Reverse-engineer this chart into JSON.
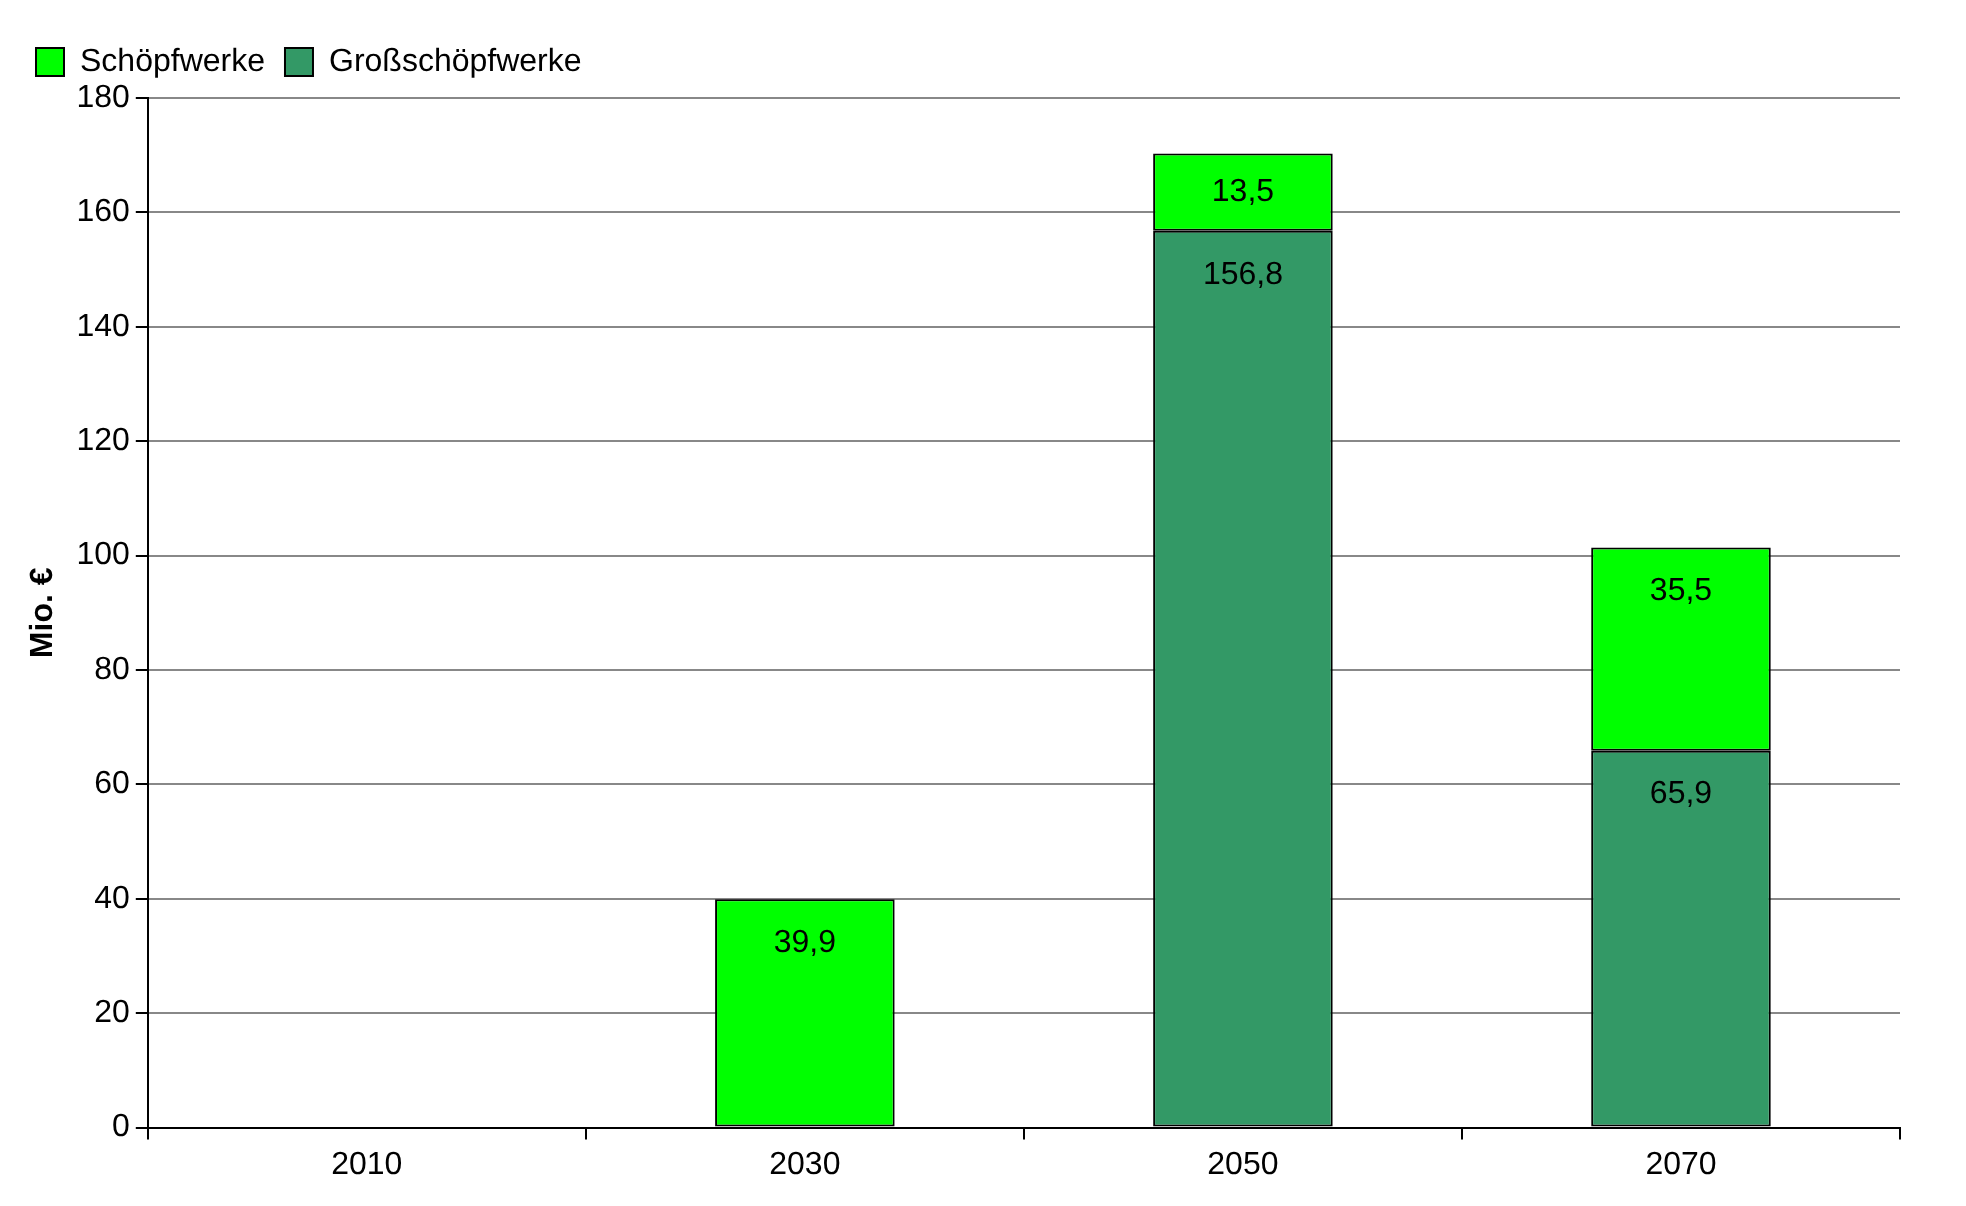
{
  "chart_data": {
    "type": "bar",
    "ylabel": "Mio. €",
    "categories": [
      "2010",
      "2030",
      "2050",
      "2070"
    ],
    "stacked": true,
    "series": [
      {
        "name": "Großschöpfwerke",
        "color": "#339966",
        "values": [
          null,
          null,
          156.8,
          65.9
        ],
        "value_labels": [
          null,
          null,
          "156,8",
          "65,9"
        ]
      },
      {
        "name": "Schöpfwerke",
        "color": "#00ff00",
        "values": [
          null,
          39.9,
          13.5,
          35.5
        ],
        "value_labels": [
          null,
          "39,9",
          "13,5",
          "35,5"
        ]
      }
    ],
    "ylim": [
      0,
      180
    ],
    "yticks": [
      0,
      20,
      40,
      60,
      80,
      100,
      120,
      140,
      160,
      180
    ],
    "grid": "y",
    "legend": "top left"
  }
}
